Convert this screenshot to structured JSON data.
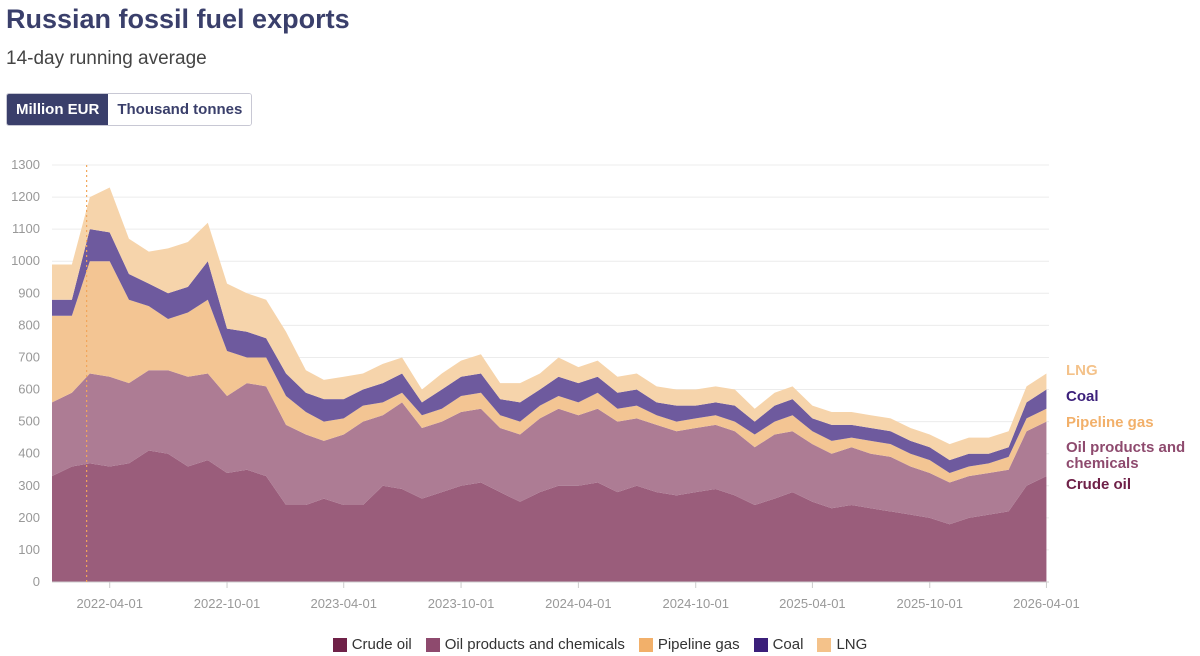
{
  "header": {
    "title": "Russian fossil fuel exports",
    "subtitle": "14-day running average"
  },
  "toggle": {
    "options": [
      "Million EUR",
      "Thousand tonnes"
    ],
    "active": 0
  },
  "chart_data": {
    "type": "area",
    "stacked": true,
    "ylim": [
      0,
      1300
    ],
    "yticks": [
      0,
      100,
      200,
      300,
      400,
      500,
      600,
      700,
      800,
      900,
      1000,
      1100,
      1200,
      1300
    ],
    "xlim": [
      "2022-01-01",
      "2026-04-05"
    ],
    "xticks": [
      "2022-04-01",
      "2022-10-01",
      "2023-04-01",
      "2023-10-01",
      "2024-04-01",
      "2024-10-01",
      "2025-04-01",
      "2025-10-01",
      "2026-04-01"
    ],
    "marker_date": "2022-02-24",
    "grid": true,
    "x": [
      "2022-01-01",
      "2022-02-01",
      "2022-03-01",
      "2022-04-01",
      "2022-05-01",
      "2022-06-01",
      "2022-07-01",
      "2022-08-01",
      "2022-09-01",
      "2022-10-01",
      "2022-11-01",
      "2022-12-01",
      "2023-01-01",
      "2023-02-01",
      "2023-03-01",
      "2023-04-01",
      "2023-05-01",
      "2023-06-01",
      "2023-07-01",
      "2023-08-01",
      "2023-09-01",
      "2023-10-01",
      "2023-11-01",
      "2023-12-01",
      "2024-01-01",
      "2024-02-01",
      "2024-03-01",
      "2024-04-01",
      "2024-05-01",
      "2024-06-01",
      "2024-07-01",
      "2024-08-01",
      "2024-09-01",
      "2024-10-01",
      "2024-11-01",
      "2024-12-01",
      "2025-01-01",
      "2025-02-01",
      "2025-03-01",
      "2025-04-01",
      "2025-05-01",
      "2025-06-01",
      "2025-07-01",
      "2025-08-01",
      "2025-09-01",
      "2025-10-01",
      "2025-11-01",
      "2025-12-01",
      "2026-01-01",
      "2026-02-01",
      "2026-03-01",
      "2026-04-01"
    ],
    "series": [
      {
        "name": "Crude oil",
        "color": "#6f2148",
        "fill": "#9a5d7b",
        "values": [
          330,
          360,
          370,
          360,
          370,
          410,
          400,
          360,
          380,
          340,
          350,
          330,
          240,
          240,
          260,
          240,
          240,
          300,
          290,
          260,
          280,
          300,
          310,
          280,
          250,
          280,
          300,
          300,
          310,
          280,
          300,
          280,
          270,
          280,
          290,
          270,
          240,
          260,
          280,
          250,
          230,
          240,
          230,
          220,
          210,
          200,
          180,
          200,
          210,
          220,
          300,
          330
        ]
      },
      {
        "name": "Oil products and chemicals",
        "color": "#8e4a6e",
        "fill": "#ad7c94",
        "values": [
          230,
          230,
          280,
          280,
          250,
          250,
          260,
          280,
          270,
          240,
          270,
          280,
          250,
          220,
          180,
          220,
          260,
          220,
          270,
          220,
          220,
          230,
          230,
          200,
          210,
          230,
          240,
          220,
          230,
          220,
          210,
          210,
          200,
          200,
          200,
          200,
          180,
          200,
          190,
          180,
          170,
          180,
          170,
          170,
          150,
          140,
          130,
          130,
          130,
          130,
          170,
          170
        ]
      },
      {
        "name": "Pipeline gas",
        "color": "#f2b06a",
        "fill": "#f3c593",
        "values": [
          270,
          240,
          350,
          360,
          260,
          200,
          160,
          200,
          230,
          140,
          80,
          90,
          90,
          70,
          60,
          50,
          50,
          40,
          30,
          40,
          40,
          50,
          50,
          40,
          40,
          40,
          40,
          40,
          50,
          40,
          40,
          30,
          30,
          30,
          30,
          30,
          40,
          40,
          50,
          40,
          40,
          30,
          40,
          40,
          40,
          40,
          30,
          30,
          30,
          40,
          40,
          40
        ]
      },
      {
        "name": "Coal",
        "color": "#3b1f7a",
        "fill": "#6e5a9e",
        "values": [
          50,
          50,
          100,
          90,
          80,
          70,
          80,
          80,
          120,
          70,
          80,
          60,
          70,
          60,
          70,
          60,
          50,
          60,
          60,
          40,
          60,
          60,
          60,
          50,
          60,
          50,
          60,
          60,
          50,
          50,
          50,
          40,
          50,
          40,
          40,
          50,
          40,
          50,
          50,
          40,
          50,
          40,
          40,
          40,
          40,
          40,
          40,
          40,
          30,
          30,
          50,
          60
        ]
      },
      {
        "name": "LNG",
        "color": "#f4c28a",
        "fill": "#f6d4ab",
        "values": [
          110,
          110,
          100,
          140,
          110,
          100,
          140,
          140,
          120,
          140,
          120,
          120,
          130,
          70,
          60,
          70,
          50,
          60,
          50,
          40,
          50,
          50,
          60,
          50,
          60,
          50,
          60,
          50,
          50,
          50,
          50,
          50,
          50,
          50,
          50,
          50,
          40,
          40,
          40,
          40,
          40,
          40,
          40,
          40,
          40,
          40,
          50,
          50,
          50,
          50,
          50,
          50
        ]
      }
    ]
  }
}
